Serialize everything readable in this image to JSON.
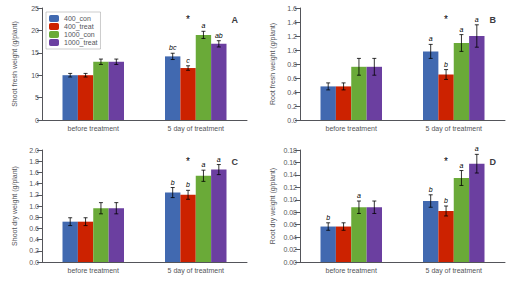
{
  "chart_data": [
    {
      "type": "bar",
      "title": "A",
      "ylabel": "Shoot fresh weight (g/plant)",
      "categories": [
        "before treatment",
        "5 day of treatment"
      ],
      "series": [
        {
          "name": "400_con",
          "color": "#4169b0",
          "values": [
            10.0,
            14.2
          ],
          "errors": [
            0.4,
            0.7
          ],
          "bar_labels": [
            null,
            "bc"
          ]
        },
        {
          "name": "400_treat",
          "color": "#cc2200",
          "values": [
            10.0,
            11.6
          ],
          "errors": [
            0.4,
            0.5
          ],
          "bar_labels": [
            null,
            "c"
          ]
        },
        {
          "name": "1000_con",
          "color": "#6aaa38",
          "values": [
            13.0,
            19.0
          ],
          "errors": [
            0.6,
            0.8
          ],
          "bar_labels": [
            null,
            "a"
          ]
        },
        {
          "name": "1000_treat",
          "color": "#6b3fa0",
          "values": [
            13.0,
            17.0
          ],
          "errors": [
            0.6,
            0.7
          ],
          "bar_labels": [
            null,
            "ab"
          ]
        }
      ],
      "annotations": [
        {
          "text": "*",
          "x": "5 day of treatment",
          "series": "400_treat",
          "y": 23.5
        }
      ],
      "ylim": [
        0,
        25
      ],
      "yticks": [
        0,
        5,
        10,
        15,
        20,
        25
      ],
      "grid": false,
      "legend": "upper left"
    },
    {
      "type": "bar",
      "title": "B",
      "ylabel": "Root fresh weight (g/plant)",
      "categories": [
        "before treatment",
        "5 day of treatment"
      ],
      "series": [
        {
          "name": "400_con",
          "color": "#4169b0",
          "values": [
            0.48,
            0.98
          ],
          "errors": [
            0.05,
            0.1
          ],
          "bar_labels": [
            null,
            "a"
          ]
        },
        {
          "name": "400_treat",
          "color": "#cc2200",
          "values": [
            0.48,
            0.65
          ],
          "errors": [
            0.05,
            0.07
          ],
          "bar_labels": [
            null,
            "b"
          ]
        },
        {
          "name": "1000_con",
          "color": "#6aaa38",
          "values": [
            0.76,
            1.1
          ],
          "errors": [
            0.12,
            0.12
          ],
          "bar_labels": [
            null,
            "a"
          ]
        },
        {
          "name": "1000_treat",
          "color": "#6b3fa0",
          "values": [
            0.76,
            1.2
          ],
          "errors": [
            0.12,
            0.16
          ],
          "bar_labels": [
            null,
            "a"
          ]
        }
      ],
      "annotations": [
        {
          "text": "*",
          "x": "5 day of treatment",
          "series": "400_treat",
          "y": 1.504
        }
      ],
      "ylim": [
        0,
        1.6
      ],
      "yticks": [
        {
          "value": 0,
          "label": "0.0"
        },
        0.2,
        0.4,
        0.6,
        0.8,
        {
          "value": 1.0,
          "label": "1.0"
        },
        1.2,
        1.4,
        1.6
      ],
      "grid": false,
      "legend": false
    },
    {
      "type": "bar",
      "title": "C",
      "ylabel": "Shoot dry weight (g/plant)",
      "categories": [
        "before treatment",
        "5 day of treatment"
      ],
      "series": [
        {
          "name": "400_con",
          "color": "#4169b0",
          "values": [
            0.72,
            1.24
          ],
          "errors": [
            0.07,
            0.09
          ],
          "bar_labels": [
            null,
            "b"
          ]
        },
        {
          "name": "400_treat",
          "color": "#cc2200",
          "values": [
            0.72,
            1.2
          ],
          "errors": [
            0.07,
            0.08
          ],
          "bar_labels": [
            null,
            "b"
          ]
        },
        {
          "name": "1000_con",
          "color": "#6aaa38",
          "values": [
            0.96,
            1.54
          ],
          "errors": [
            0.1,
            0.1
          ],
          "bar_labels": [
            null,
            "a"
          ]
        },
        {
          "name": "1000_treat",
          "color": "#6b3fa0",
          "values": [
            0.96,
            1.65
          ],
          "errors": [
            0.1,
            0.09
          ],
          "bar_labels": [
            null,
            "a"
          ]
        }
      ],
      "annotations": [
        {
          "text": "*",
          "x": "5 day of treatment",
          "series": "400_treat",
          "y": 1.88
        }
      ],
      "ylim": [
        0,
        2.0
      ],
      "yticks": [
        {
          "value": 0,
          "label": "0.0"
        },
        0.2,
        0.4,
        0.6,
        0.8,
        {
          "value": 1.0,
          "label": "1.0"
        },
        1.2,
        1.4,
        1.6,
        1.8,
        {
          "value": 2.0,
          "label": "2.0"
        }
      ],
      "grid": false,
      "legend": false
    },
    {
      "type": "bar",
      "title": "D",
      "ylabel": "Root dry weight (g/plant)",
      "categories": [
        "before treatment",
        "5 day of treatment"
      ],
      "series": [
        {
          "name": "400_con",
          "color": "#4169b0",
          "values": [
            0.057,
            0.098
          ],
          "errors": [
            0.006,
            0.01
          ],
          "bar_labels": [
            "b",
            "b"
          ]
        },
        {
          "name": "400_treat",
          "color": "#cc2200",
          "values": [
            0.057,
            0.082
          ],
          "errors": [
            0.006,
            0.008
          ],
          "bar_labels": [
            null,
            "b"
          ]
        },
        {
          "name": "1000_con",
          "color": "#6aaa38",
          "values": [
            0.088,
            0.135
          ],
          "errors": [
            0.01,
            0.012
          ],
          "bar_labels": [
            "a",
            "a"
          ]
        },
        {
          "name": "1000_treat",
          "color": "#6b3fa0",
          "values": [
            0.088,
            0.158
          ],
          "errors": [
            0.01,
            0.015
          ],
          "bar_labels": [
            null,
            "a"
          ]
        }
      ],
      "annotations": [
        {
          "text": "*",
          "x": "5 day of treatment",
          "series": "400_treat",
          "y": 0.1692
        }
      ],
      "ylim": [
        0,
        0.18
      ],
      "yticks": [
        {
          "value": 0,
          "label": "0.00"
        },
        0.02,
        0.04,
        0.06,
        0.08,
        {
          "value": 0.1,
          "label": "0.10"
        },
        0.12,
        0.14,
        0.16,
        0.18
      ],
      "grid": false,
      "legend": false
    }
  ]
}
